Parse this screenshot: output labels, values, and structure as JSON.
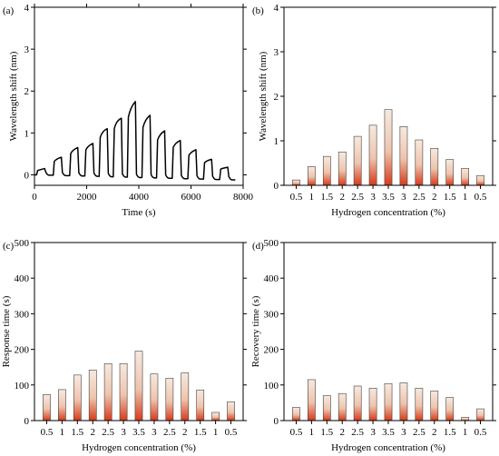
{
  "chart_data": [
    {
      "panel": "(a)",
      "type": "line",
      "xlabel": "Time (s)",
      "ylabel": "Wavelength shift (nm)",
      "xlim": [
        0,
        8000
      ],
      "ylim": [
        -0.25,
        4
      ],
      "xticks": [
        0,
        2000,
        4000,
        6000,
        8000
      ],
      "yticks": [
        0,
        1,
        2,
        3,
        4
      ],
      "series": [
        {
          "steps": [
            {
              "t_on": 80,
              "t_off": 400,
              "peak": 0.15,
              "settle": 0.12
            },
            {
              "t_on": 720,
              "t_off": 1040,
              "peak": 0.42,
              "settle": 0.38
            },
            {
              "t_on": 1350,
              "t_off": 1670,
              "peak": 0.65,
              "settle": 0.6
            },
            {
              "t_on": 1930,
              "t_off": 2250,
              "peak": 0.75,
              "settle": 0.7
            },
            {
              "t_on": 2480,
              "t_off": 2800,
              "peak": 1.1,
              "settle": 1.05
            },
            {
              "t_on": 3020,
              "t_off": 3340,
              "peak": 1.35,
              "settle": 1.3
            },
            {
              "t_on": 3560,
              "t_off": 3880,
              "peak": 1.75,
              "settle": 1.62
            },
            {
              "t_on": 4120,
              "t_off": 4440,
              "peak": 1.42,
              "settle": 1.33
            },
            {
              "t_on": 4680,
              "t_off": 5000,
              "peak": 1.05,
              "settle": 0.98
            },
            {
              "t_on": 5280,
              "t_off": 5600,
              "peak": 0.82,
              "settle": 0.77
            },
            {
              "t_on": 5880,
              "t_off": 6200,
              "peak": 0.6,
              "settle": 0.55
            },
            {
              "t_on": 6480,
              "t_off": 6800,
              "peak": 0.37,
              "settle": 0.34
            },
            {
              "t_on": 7100,
              "t_off": 7420,
              "peak": 0.18,
              "settle": 0.16
            }
          ],
          "baseline_start": 0.0,
          "baseline_end": -0.12
        }
      ]
    },
    {
      "panel": "(b)",
      "type": "bar",
      "xlabel": "Hydrogen concentration (%)",
      "ylabel": "Wavelength shift (nm)",
      "ylim": [
        0,
        4
      ],
      "yticks": [
        0,
        1,
        2,
        3,
        4
      ],
      "categories": [
        "0.5",
        "1",
        "1.5",
        "2",
        "2.5",
        "3",
        "3.5",
        "3",
        "2.5",
        "2",
        "1.5",
        "1",
        "0.5"
      ],
      "values": [
        0.12,
        0.42,
        0.65,
        0.75,
        1.1,
        1.35,
        1.7,
        1.32,
        1.02,
        0.83,
        0.58,
        0.38,
        0.22
      ]
    },
    {
      "panel": "(c)",
      "type": "bar",
      "xlabel": "Hydrogen concentration (%)",
      "ylabel": "Response time (s)",
      "ylim": [
        0,
        500
      ],
      "yticks": [
        0,
        100,
        200,
        300,
        400,
        500
      ],
      "categories": [
        "0.5",
        "1",
        "1.5",
        "2",
        "2.5",
        "3",
        "3.5",
        "3",
        "2.5",
        "2",
        "1.5",
        "1",
        "0.5"
      ],
      "values": [
        73,
        87,
        128,
        142,
        160,
        160,
        195,
        131,
        119,
        134,
        86,
        23,
        53
      ]
    },
    {
      "panel": "(d)",
      "type": "bar",
      "xlabel": "Hydrogen concentration (%)",
      "ylabel": "Recovery time (s)",
      "ylim": [
        0,
        500
      ],
      "yticks": [
        0,
        100,
        200,
        300,
        400,
        500
      ],
      "categories": [
        "0.5",
        "1",
        "1.5",
        "2",
        "2.5",
        "3",
        "3.5",
        "3",
        "2.5",
        "2",
        "1.5",
        "1",
        "0.5"
      ],
      "values": [
        37,
        115,
        70,
        76,
        97,
        91,
        104,
        106,
        91,
        83,
        65,
        9,
        33
      ]
    }
  ],
  "colors": {
    "bar_top": "#f7e9df",
    "bar_bottom": "#d63a1a",
    "bar_edge": "#404040",
    "line": "#000000"
  }
}
